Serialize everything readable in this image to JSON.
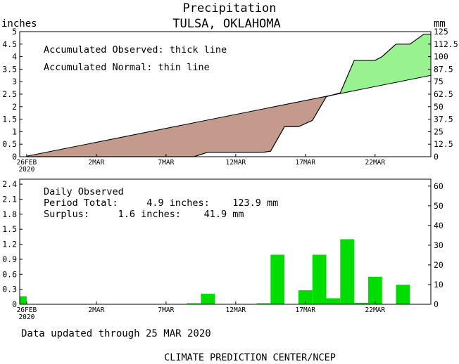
{
  "header": {
    "title": "Precipitation",
    "subtitle": "TULSA, OKLAHOMA"
  },
  "footer": {
    "updated": "Data updated through 25 MAR 2020",
    "credit": "CLIMATE PREDICTION CENTER/NCEP"
  },
  "colors": {
    "deficit_fill": "#c49a8c",
    "surplus_fill": "#98f290",
    "bar_fill": "#00dd00",
    "line": "#000000"
  },
  "chart_data": [
    {
      "type": "area",
      "left_unit": "inches",
      "right_unit": "mm",
      "annotations": [
        "Accumulated Observed: thick line",
        "Accumulated Normal: thin line"
      ],
      "x_ticks": [
        {
          "day": 0,
          "label": "26FEB",
          "sublabel": "2020"
        },
        {
          "day": 5,
          "label": "2MAR"
        },
        {
          "day": 10,
          "label": "7MAR"
        },
        {
          "day": 15,
          "label": "12MAR"
        },
        {
          "day": 20,
          "label": "17MAR"
        },
        {
          "day": 25,
          "label": "22MAR"
        }
      ],
      "xlim": [
        -0.5,
        29
      ],
      "ylim": [
        0,
        5
      ],
      "y_ticks_left": [
        "0",
        "0.5",
        "1",
        "1.5",
        "2",
        "2.5",
        "3",
        "3.5",
        "4",
        "4.5",
        "5"
      ],
      "y_ticks_right": [
        "0",
        "12.5",
        "25",
        "37.5",
        "50",
        "62.5",
        "75",
        "87.5",
        "100",
        "112.5",
        "125"
      ],
      "normal": [
        [
          0,
          0.02
        ],
        [
          29,
          3.25
        ]
      ],
      "observed": [
        [
          0,
          0.0
        ],
        [
          12,
          0.0
        ],
        [
          13,
          0.18
        ],
        [
          17,
          0.18
        ],
        [
          17.5,
          0.22
        ],
        [
          18.5,
          1.2
        ],
        [
          19.5,
          1.2
        ],
        [
          20.5,
          1.45
        ],
        [
          21.5,
          2.4
        ],
        [
          22.5,
          2.55
        ],
        [
          23.5,
          3.85
        ],
        [
          25,
          3.85
        ],
        [
          25.5,
          4.0
        ],
        [
          26.5,
          4.5
        ],
        [
          27.5,
          4.5
        ],
        [
          28.5,
          4.9
        ],
        [
          29,
          4.9
        ]
      ]
    },
    {
      "type": "bar",
      "annotations": [
        "Daily Observed",
        "Period Total:     4.9 inches:    123.9 mm",
        "Surplus:     1.6 inches:    41.9 mm"
      ],
      "x_ticks": [
        {
          "day": 0,
          "label": "26FEB",
          "sublabel": "2020"
        },
        {
          "day": 5,
          "label": "2MAR"
        },
        {
          "day": 10,
          "label": "7MAR"
        },
        {
          "day": 15,
          "label": "12MAR"
        },
        {
          "day": 20,
          "label": "17MAR"
        },
        {
          "day": 25,
          "label": "22MAR"
        }
      ],
      "xlim": [
        -0.5,
        29
      ],
      "ylim": [
        0,
        2.5
      ],
      "y_ticks_left": [
        "0",
        "0.3",
        "0.6",
        "0.9",
        "1.2",
        "1.5",
        "1.8",
        "2.1",
        "2.4"
      ],
      "y_ticks_left_values": [
        0,
        0.3,
        0.6,
        0.9,
        1.2,
        1.5,
        1.8,
        2.1,
        2.4
      ],
      "y_ticks_right": [
        "0",
        "10",
        "20",
        "30",
        "40",
        "50",
        "60"
      ],
      "y_ticks_right_mm": [
        0,
        10,
        20,
        30,
        40,
        50,
        60
      ],
      "bars": [
        {
          "day": -0.25,
          "value": 0.16,
          "width": 0.5
        },
        {
          "day": 12,
          "value": 0.02
        },
        {
          "day": 13,
          "value": 0.21
        },
        {
          "day": 17,
          "value": 0.02
        },
        {
          "day": 18,
          "value": 0.99
        },
        {
          "day": 20,
          "value": 0.28
        },
        {
          "day": 21,
          "value": 0.99
        },
        {
          "day": 22,
          "value": 0.12
        },
        {
          "day": 23,
          "value": 1.3
        },
        {
          "day": 24,
          "value": 0.03
        },
        {
          "day": 25,
          "value": 0.55
        },
        {
          "day": 27,
          "value": 0.39
        }
      ]
    }
  ]
}
